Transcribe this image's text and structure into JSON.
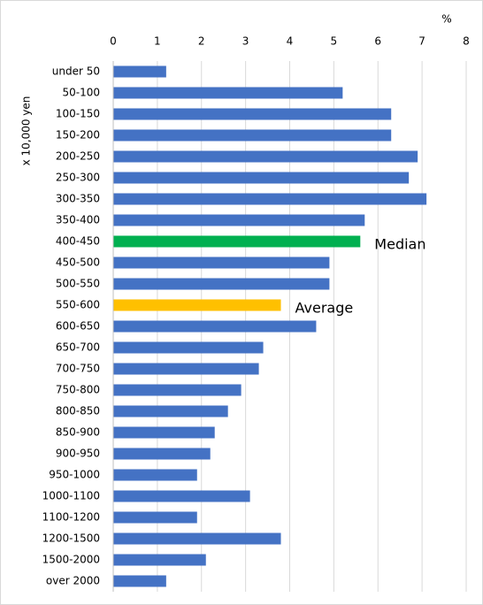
{
  "chart_data": {
    "type": "barh",
    "y_label": "x 10,000 yen",
    "x_unit": "%",
    "categories": [
      "under 50",
      "50-100",
      "100-150",
      "150-200",
      "200-250",
      "250-300",
      "300-350",
      "350-400",
      "400-450",
      "450-500",
      "500-550",
      "550-600",
      "600-650",
      "650-700",
      "700-750",
      "750-800",
      "800-850",
      "850-900",
      "900-950",
      "950-1000",
      "1000-1100",
      "1100-1200",
      "1200-1500",
      "1500-2000",
      "over 2000"
    ],
    "values": [
      1.2,
      5.2,
      6.3,
      6.3,
      6.9,
      6.7,
      7.1,
      5.7,
      5.6,
      4.9,
      4.9,
      3.8,
      4.6,
      3.4,
      3.3,
      2.9,
      2.6,
      2.3,
      2.2,
      1.9,
      3.1,
      1.9,
      3.8,
      2.1,
      1.2
    ],
    "colors": [
      "#4472c4",
      "#4472c4",
      "#4472c4",
      "#4472c4",
      "#4472c4",
      "#4472c4",
      "#4472c4",
      "#4472c4",
      "#00b050",
      "#4472c4",
      "#4472c4",
      "#ffc000",
      "#4472c4",
      "#4472c4",
      "#4472c4",
      "#4472c4",
      "#4472c4",
      "#4472c4",
      "#4472c4",
      "#4472c4",
      "#4472c4",
      "#4472c4",
      "#4472c4",
      "#4472c4",
      "#4472c4"
    ],
    "annotations": [
      {
        "text": "Median",
        "category": "400-450"
      },
      {
        "text": "Average",
        "category": "550-600"
      }
    ],
    "xlim": [
      0,
      8
    ],
    "xticks": [
      0,
      1,
      2,
      3,
      4,
      5,
      6,
      7,
      8
    ],
    "grid": true
  }
}
